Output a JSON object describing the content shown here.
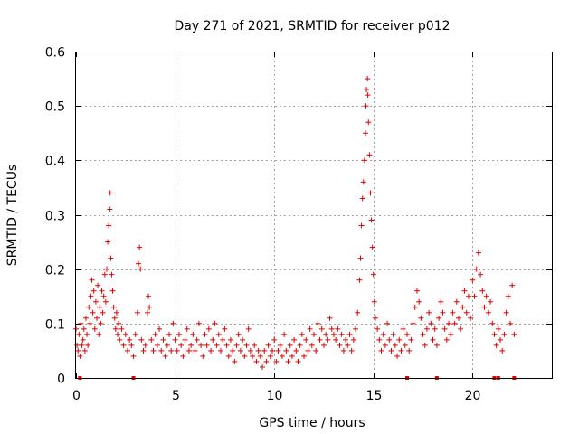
{
  "chart_data": {
    "type": "scatter",
    "title": "Day 271 of 2021, SRMTID for receiver p012",
    "xlabel": "GPS time / hours",
    "ylabel": "SRMTID / TECUs",
    "xlim": [
      0,
      24
    ],
    "ylim": [
      0,
      0.6
    ],
    "xticks": [
      0,
      5,
      10,
      15,
      20
    ],
    "xtick_labels": [
      "0",
      "5",
      "10",
      "15",
      "20"
    ],
    "yticks": [
      0,
      0.1,
      0.2,
      0.3,
      0.4,
      0.5,
      0.6
    ],
    "ytick_labels": [
      "0",
      "0.1",
      "0.2",
      "0.3",
      "0.4",
      "0.5",
      "0.6"
    ],
    "grid": true,
    "marker": "plus",
    "color": "#e00000",
    "zero_markers_x": [
      0.2,
      2.9,
      16.7,
      18.2,
      21.1,
      21.3,
      22.1
    ],
    "series": [
      {
        "name": "SRMTID",
        "points": [
          [
            0.0,
            0.09
          ],
          [
            0.05,
            0.06
          ],
          [
            0.1,
            0.05
          ],
          [
            0.15,
            0.08
          ],
          [
            0.2,
            0.04
          ],
          [
            0.25,
            0.1
          ],
          [
            0.3,
            0.06
          ],
          [
            0.35,
            0.07
          ],
          [
            0.4,
            0.09
          ],
          [
            0.45,
            0.05
          ],
          [
            0.5,
            0.11
          ],
          [
            0.55,
            0.08
          ],
          [
            0.6,
            0.06
          ],
          [
            0.65,
            0.13
          ],
          [
            0.7,
            0.1
          ],
          [
            0.75,
            0.15
          ],
          [
            0.8,
            0.18
          ],
          [
            0.85,
            0.12
          ],
          [
            0.9,
            0.16
          ],
          [
            0.95,
            0.09
          ],
          [
            1.0,
            0.14
          ],
          [
            1.05,
            0.11
          ],
          [
            1.1,
            0.17
          ],
          [
            1.15,
            0.08
          ],
          [
            1.2,
            0.13
          ],
          [
            1.25,
            0.1
          ],
          [
            1.3,
            0.16
          ],
          [
            1.35,
            0.12
          ],
          [
            1.4,
            0.15
          ],
          [
            1.45,
            0.19
          ],
          [
            1.5,
            0.14
          ],
          [
            1.55,
            0.2
          ],
          [
            1.6,
            0.25
          ],
          [
            1.65,
            0.28
          ],
          [
            1.7,
            0.31
          ],
          [
            1.72,
            0.34
          ],
          [
            1.75,
            0.22
          ],
          [
            1.8,
            0.19
          ],
          [
            1.85,
            0.16
          ],
          [
            1.9,
            0.13
          ],
          [
            1.95,
            0.11
          ],
          [
            2.0,
            0.09
          ],
          [
            2.05,
            0.12
          ],
          [
            2.1,
            0.08
          ],
          [
            2.15,
            0.1
          ],
          [
            2.2,
            0.07
          ],
          [
            2.3,
            0.09
          ],
          [
            2.4,
            0.06
          ],
          [
            2.5,
            0.08
          ],
          [
            2.6,
            0.05
          ],
          [
            2.7,
            0.07
          ],
          [
            2.8,
            0.06
          ],
          [
            2.9,
            0.04
          ],
          [
            3.0,
            0.08
          ],
          [
            3.1,
            0.12
          ],
          [
            3.15,
            0.21
          ],
          [
            3.2,
            0.24
          ],
          [
            3.25,
            0.2
          ],
          [
            3.3,
            0.07
          ],
          [
            3.4,
            0.05
          ],
          [
            3.5,
            0.06
          ],
          [
            3.6,
            0.12
          ],
          [
            3.65,
            0.15
          ],
          [
            3.7,
            0.13
          ],
          [
            3.8,
            0.07
          ],
          [
            3.9,
            0.05
          ],
          [
            4.0,
            0.08
          ],
          [
            4.1,
            0.06
          ],
          [
            4.2,
            0.09
          ],
          [
            4.3,
            0.05
          ],
          [
            4.4,
            0.07
          ],
          [
            4.5,
            0.04
          ],
          [
            4.6,
            0.06
          ],
          [
            4.7,
            0.08
          ],
          [
            4.8,
            0.05
          ],
          [
            4.9,
            0.1
          ],
          [
            5.0,
            0.07
          ],
          [
            5.1,
            0.05
          ],
          [
            5.2,
            0.08
          ],
          [
            5.3,
            0.06
          ],
          [
            5.4,
            0.04
          ],
          [
            5.5,
            0.07
          ],
          [
            5.6,
            0.09
          ],
          [
            5.7,
            0.05
          ],
          [
            5.8,
            0.06
          ],
          [
            5.9,
            0.08
          ],
          [
            6.0,
            0.05
          ],
          [
            6.1,
            0.07
          ],
          [
            6.2,
            0.1
          ],
          [
            6.3,
            0.06
          ],
          [
            6.4,
            0.04
          ],
          [
            6.5,
            0.08
          ],
          [
            6.6,
            0.06
          ],
          [
            6.7,
            0.09
          ],
          [
            6.8,
            0.05
          ],
          [
            6.9,
            0.07
          ],
          [
            7.0,
            0.1
          ],
          [
            7.1,
            0.06
          ],
          [
            7.2,
            0.08
          ],
          [
            7.3,
            0.05
          ],
          [
            7.4,
            0.07
          ],
          [
            7.5,
            0.09
          ],
          [
            7.6,
            0.06
          ],
          [
            7.7,
            0.04
          ],
          [
            7.8,
            0.07
          ],
          [
            7.9,
            0.05
          ],
          [
            8.0,
            0.03
          ],
          [
            8.1,
            0.06
          ],
          [
            8.2,
            0.08
          ],
          [
            8.3,
            0.05
          ],
          [
            8.4,
            0.07
          ],
          [
            8.5,
            0.04
          ],
          [
            8.6,
            0.06
          ],
          [
            8.7,
            0.09
          ],
          [
            8.8,
            0.05
          ],
          [
            8.9,
            0.04
          ],
          [
            9.0,
            0.06
          ],
          [
            9.1,
            0.03
          ],
          [
            9.2,
            0.05
          ],
          [
            9.3,
            0.04
          ],
          [
            9.4,
            0.02
          ],
          [
            9.5,
            0.05
          ],
          [
            9.6,
            0.03
          ],
          [
            9.7,
            0.06
          ],
          [
            9.8,
            0.04
          ],
          [
            9.9,
            0.05
          ],
          [
            10.0,
            0.07
          ],
          [
            10.1,
            0.03
          ],
          [
            10.2,
            0.05
          ],
          [
            10.3,
            0.06
          ],
          [
            10.4,
            0.04
          ],
          [
            10.5,
            0.08
          ],
          [
            10.6,
            0.05
          ],
          [
            10.7,
            0.03
          ],
          [
            10.8,
            0.06
          ],
          [
            10.9,
            0.04
          ],
          [
            11.0,
            0.07
          ],
          [
            11.1,
            0.05
          ],
          [
            11.2,
            0.03
          ],
          [
            11.3,
            0.06
          ],
          [
            11.4,
            0.08
          ],
          [
            11.5,
            0.04
          ],
          [
            11.6,
            0.07
          ],
          [
            11.7,
            0.05
          ],
          [
            11.8,
            0.09
          ],
          [
            11.9,
            0.06
          ],
          [
            12.0,
            0.08
          ],
          [
            12.1,
            0.05
          ],
          [
            12.2,
            0.1
          ],
          [
            12.3,
            0.07
          ],
          [
            12.4,
            0.09
          ],
          [
            12.5,
            0.06
          ],
          [
            12.6,
            0.08
          ],
          [
            12.7,
            0.07
          ],
          [
            12.8,
            0.11
          ],
          [
            12.9,
            0.09
          ],
          [
            13.0,
            0.08
          ],
          [
            13.1,
            0.07
          ],
          [
            13.2,
            0.09
          ],
          [
            13.3,
            0.06
          ],
          [
            13.4,
            0.08
          ],
          [
            13.5,
            0.05
          ],
          [
            13.6,
            0.07
          ],
          [
            13.7,
            0.06
          ],
          [
            13.8,
            0.08
          ],
          [
            13.9,
            0.05
          ],
          [
            14.0,
            0.07
          ],
          [
            14.1,
            0.09
          ],
          [
            14.2,
            0.12
          ],
          [
            14.3,
            0.18
          ],
          [
            14.35,
            0.22
          ],
          [
            14.4,
            0.28
          ],
          [
            14.45,
            0.33
          ],
          [
            14.5,
            0.36
          ],
          [
            14.55,
            0.4
          ],
          [
            14.6,
            0.45
          ],
          [
            14.62,
            0.5
          ],
          [
            14.65,
            0.53
          ],
          [
            14.7,
            0.55
          ],
          [
            14.72,
            0.52
          ],
          [
            14.75,
            0.47
          ],
          [
            14.8,
            0.41
          ],
          [
            14.85,
            0.34
          ],
          [
            14.9,
            0.29
          ],
          [
            14.95,
            0.24
          ],
          [
            15.0,
            0.19
          ],
          [
            15.05,
            0.14
          ],
          [
            15.1,
            0.11
          ],
          [
            15.2,
            0.09
          ],
          [
            15.3,
            0.07
          ],
          [
            15.4,
            0.05
          ],
          [
            15.5,
            0.08
          ],
          [
            15.6,
            0.06
          ],
          [
            15.7,
            0.1
          ],
          [
            15.8,
            0.07
          ],
          [
            15.9,
            0.05
          ],
          [
            16.0,
            0.08
          ],
          [
            16.1,
            0.06
          ],
          [
            16.2,
            0.04
          ],
          [
            16.3,
            0.07
          ],
          [
            16.4,
            0.05
          ],
          [
            16.5,
            0.09
          ],
          [
            16.6,
            0.06
          ],
          [
            16.7,
            0.08
          ],
          [
            16.8,
            0.05
          ],
          [
            16.9,
            0.07
          ],
          [
            17.0,
            0.1
          ],
          [
            17.1,
            0.13
          ],
          [
            17.2,
            0.16
          ],
          [
            17.3,
            0.14
          ],
          [
            17.4,
            0.11
          ],
          [
            17.5,
            0.08
          ],
          [
            17.6,
            0.06
          ],
          [
            17.7,
            0.09
          ],
          [
            17.8,
            0.12
          ],
          [
            17.9,
            0.1
          ],
          [
            18.0,
            0.07
          ],
          [
            18.1,
            0.09
          ],
          [
            18.2,
            0.06
          ],
          [
            18.3,
            0.11
          ],
          [
            18.4,
            0.14
          ],
          [
            18.5,
            0.12
          ],
          [
            18.6,
            0.09
          ],
          [
            18.7,
            0.07
          ],
          [
            18.8,
            0.1
          ],
          [
            18.9,
            0.08
          ],
          [
            19.0,
            0.12
          ],
          [
            19.1,
            0.1
          ],
          [
            19.2,
            0.14
          ],
          [
            19.3,
            0.11
          ],
          [
            19.4,
            0.09
          ],
          [
            19.5,
            0.13
          ],
          [
            19.6,
            0.16
          ],
          [
            19.7,
            0.12
          ],
          [
            19.8,
            0.15
          ],
          [
            19.9,
            0.11
          ],
          [
            20.0,
            0.18
          ],
          [
            20.1,
            0.15
          ],
          [
            20.2,
            0.2
          ],
          [
            20.3,
            0.23
          ],
          [
            20.4,
            0.19
          ],
          [
            20.5,
            0.16
          ],
          [
            20.6,
            0.13
          ],
          [
            20.7,
            0.15
          ],
          [
            20.8,
            0.12
          ],
          [
            20.9,
            0.14
          ],
          [
            21.0,
            0.1
          ],
          [
            21.1,
            0.08
          ],
          [
            21.2,
            0.06
          ],
          [
            21.3,
            0.09
          ],
          [
            21.4,
            0.07
          ],
          [
            21.5,
            0.05
          ],
          [
            21.6,
            0.08
          ],
          [
            21.7,
            0.12
          ],
          [
            21.8,
            0.15
          ],
          [
            21.9,
            0.1
          ],
          [
            22.0,
            0.17
          ],
          [
            22.1,
            0.08
          ]
        ]
      }
    ]
  }
}
